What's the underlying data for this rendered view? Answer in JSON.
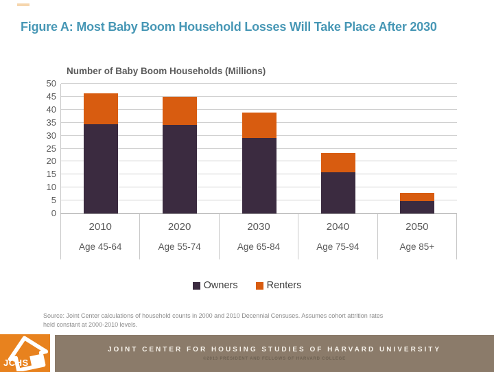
{
  "title": "Figure A: Most Baby Boom Household Losses Will Take Place After 2030",
  "chart_data": {
    "type": "bar",
    "stacked": true,
    "title": "Number of Baby Boom Households (Millions)",
    "categories": [
      "2010",
      "2020",
      "2030",
      "2040",
      "2050"
    ],
    "category_sublabels": [
      "Age 45-64",
      "Age 55-74",
      "Age 65-84",
      "Age 75-94",
      "Age 85+"
    ],
    "series": [
      {
        "name": "Owners",
        "color": "#3b2b40",
        "values": [
          34.4,
          34.0,
          29.0,
          15.9,
          4.8
        ]
      },
      {
        "name": "Renters",
        "color": "#d85c10",
        "values": [
          11.8,
          11.0,
          10.0,
          7.3,
          3.2
        ]
      }
    ],
    "totals": [
      46.2,
      45.0,
      39.0,
      23.2,
      8.0
    ],
    "ylim": [
      0,
      50
    ],
    "ytick_step": 5,
    "grid": true,
    "legend_position": "bottom"
  },
  "source": {
    "line1": "Source: Joint Center calculations of household counts in 2000 and 2010 Decennial Censuses. Assumes cohort attrition rates",
    "line2": "held constant at 2000-2010 levels."
  },
  "footer": {
    "logo_text": "JCHS",
    "org": "JOINT CENTER FOR HOUSING STUDIES OF HARVARD UNIVERSITY",
    "copyright": "©2013 PRESIDENT AND FELLOWS OF HARVARD COLLEGE"
  },
  "colors": {
    "title": "#4797b5",
    "owners": "#3b2b40",
    "renters": "#d85c10",
    "footer_bar": "#8b7b6a",
    "logo_orange": "#e8821e"
  }
}
